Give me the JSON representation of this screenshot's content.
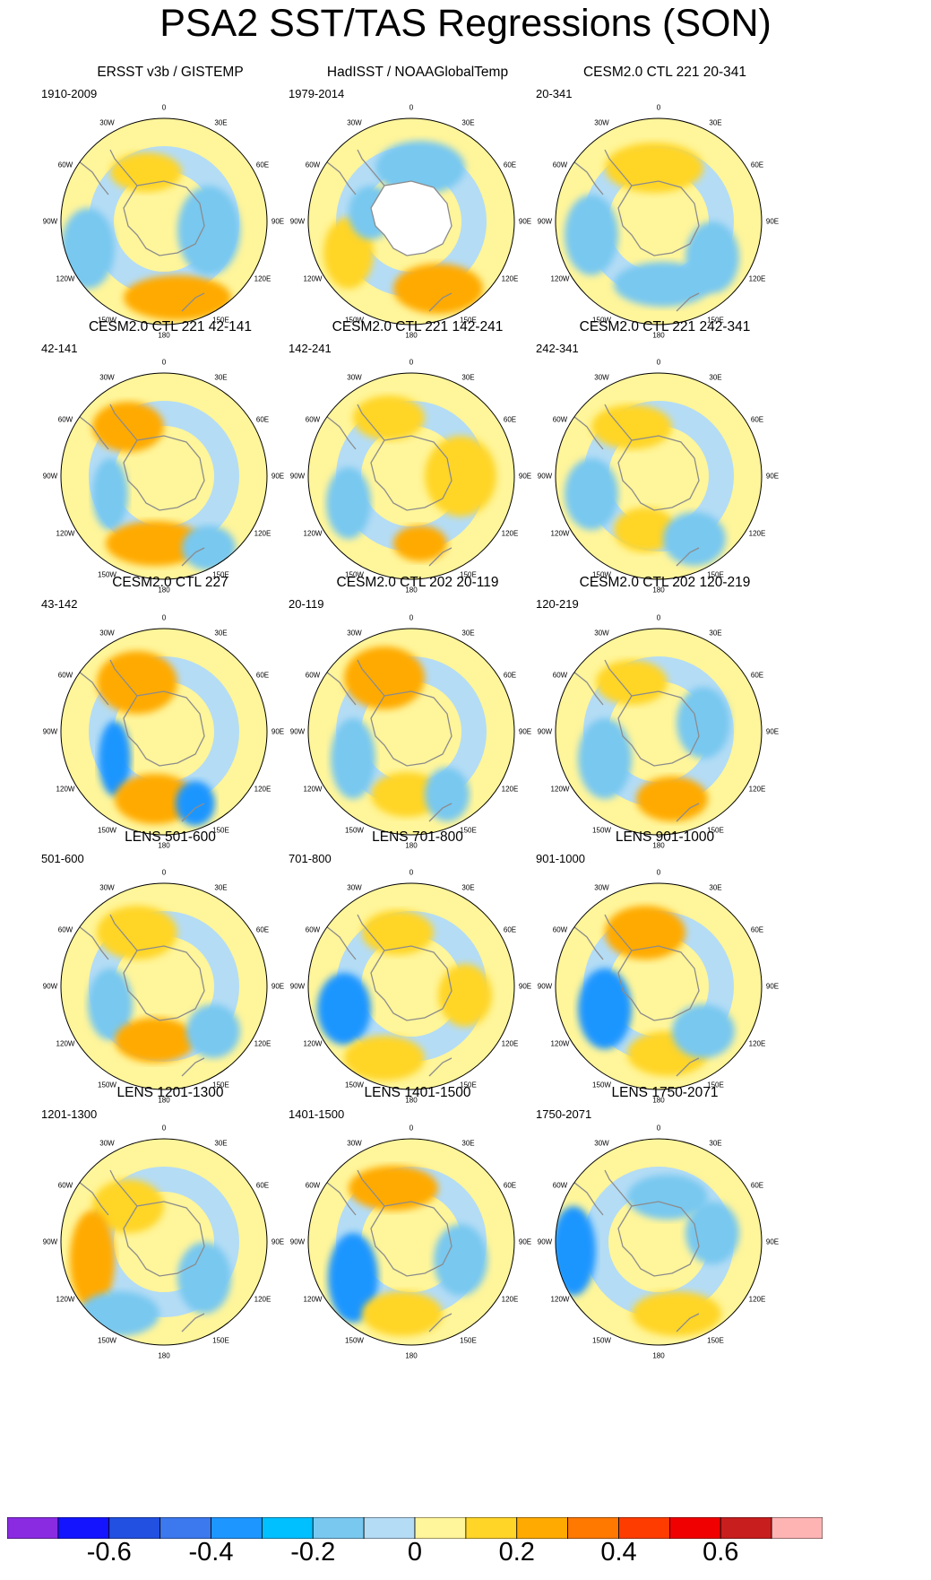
{
  "title": "PSA2 SST/TAS Regressions (SON)",
  "map_labels": {
    "top": "0",
    "bottom": "180",
    "upper_left": "30W",
    "upper_right": "30E",
    "left_upper": "60W",
    "right_upper": "60E",
    "left": "90W",
    "right": "90E",
    "left_lower": "120W",
    "right_lower": "120E",
    "lower_left": "150W",
    "lower_right": "150E"
  },
  "panels": [
    {
      "title": "ERSST v3b / GISTEMP",
      "period": "1910-2009"
    },
    {
      "title": "HadISST / NOAAGlobalTemp",
      "period": "1979-2014"
    },
    {
      "title": "CESM2.0 CTL 221 20-341",
      "period": "20-341"
    },
    {
      "title": "CESM2.0 CTL 221 42-141",
      "period": "42-141"
    },
    {
      "title": "CESM2.0 CTL 221 142-241",
      "period": "142-241"
    },
    {
      "title": "CESM2.0 CTL 221 242-341",
      "period": "242-341"
    },
    {
      "title": "CESM2.0 CTL 227",
      "period": "43-142"
    },
    {
      "title": "CESM2.0 CTL 202 20-119",
      "period": "20-119"
    },
    {
      "title": "CESM2.0 CTL 202 120-219",
      "period": "120-219"
    },
    {
      "title": "LENS 501-600",
      "period": "501-600"
    },
    {
      "title": "LENS 701-800",
      "period": "701-800"
    },
    {
      "title": "LENS 901-1000",
      "period": "901-1000"
    },
    {
      "title": "LENS 1201-1300",
      "period": "1201-1300"
    },
    {
      "title": "LENS 1401-1500",
      "period": "1401-1500"
    },
    {
      "title": "LENS 1750-2071",
      "period": "1750-2071"
    }
  ],
  "colorbar": {
    "colors": [
      "#8a2be2",
      "#1414ff",
      "#2250e0",
      "#3c78ee",
      "#1e96ff",
      "#00c0ff",
      "#78c8f0",
      "#b4dcf5",
      "#fff59a",
      "#ffd528",
      "#ffaa00",
      "#ff7800",
      "#ff3c00",
      "#f00000",
      "#c81e1e",
      "#ffb4b4"
    ],
    "tick_labels": [
      "-0.6",
      "-0.4",
      "-0.2",
      "0",
      "0.2",
      "0.4",
      "0.6"
    ]
  },
  "colors": {
    "ocean_neutral_cool": "#b4dcf5",
    "ocean_neutral_warm": "#fff59a",
    "land": "#ffffff",
    "coastline": "#8c8c8c"
  }
}
